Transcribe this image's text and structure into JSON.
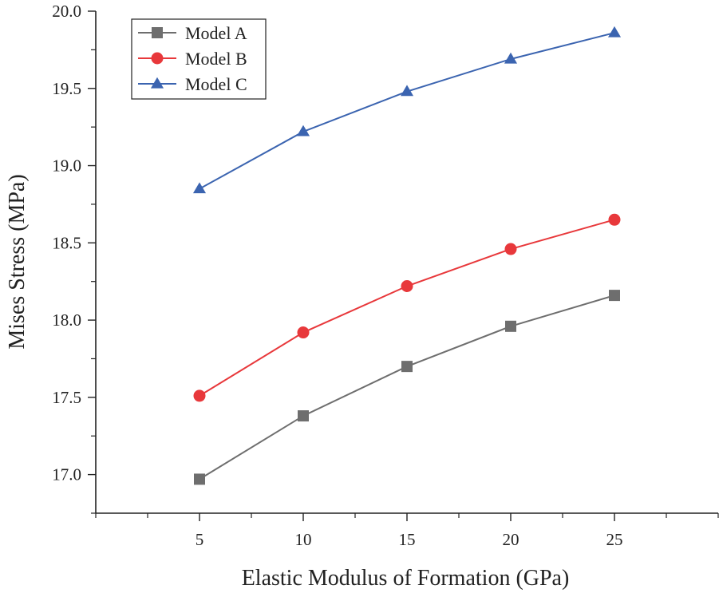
{
  "chart_data": {
    "type": "line",
    "title": "",
    "xlabel": "Elastic Modulus of Formation (GPa)",
    "ylabel": "Mises Stress (MPa)",
    "x": [
      5,
      10,
      15,
      20,
      25
    ],
    "xlim": [
      0,
      30
    ],
    "ylim": [
      16.75,
      20.0
    ],
    "xticks": [
      5,
      10,
      15,
      20,
      25
    ],
    "xtick_labels": [
      "5",
      "10",
      "15",
      "20",
      "25"
    ],
    "yticks": [
      17.0,
      17.5,
      18.0,
      18.5,
      19.0,
      19.5,
      20.0
    ],
    "ytick_labels": [
      "17.0",
      "17.5",
      "18.0",
      "18.5",
      "19.0",
      "19.5",
      "20.0"
    ],
    "grid": false,
    "legend_position": "top-left",
    "series": [
      {
        "name": "Model A",
        "marker": "square",
        "color": "#6e6e6e",
        "values": [
          16.97,
          17.38,
          17.7,
          17.96,
          18.16
        ]
      },
      {
        "name": "Model B",
        "marker": "circle",
        "color": "#e8383b",
        "values": [
          17.51,
          17.92,
          18.22,
          18.46,
          18.65
        ]
      },
      {
        "name": "Model C",
        "marker": "triangle",
        "color": "#3b64b0",
        "values": [
          18.85,
          19.22,
          19.48,
          19.69,
          19.86
        ]
      }
    ]
  }
}
